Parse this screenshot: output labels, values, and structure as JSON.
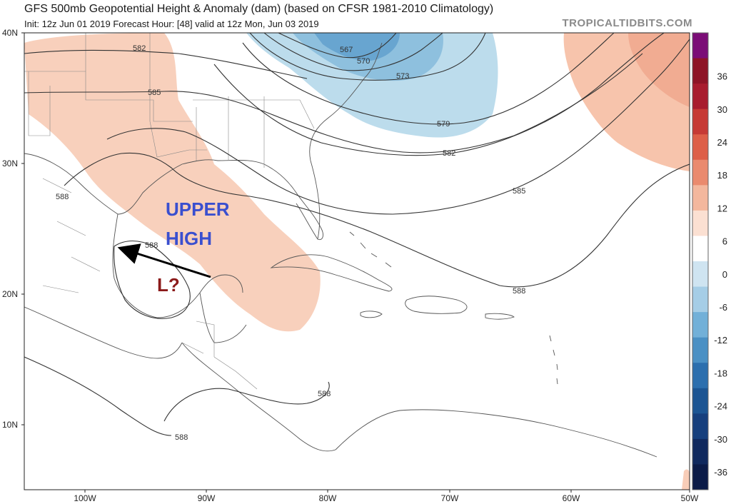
{
  "header": {
    "title": "GFS 500mb Geopotential Height & Anomaly (dam) (based on CFSR 1981-2010 Climatology)",
    "subtitle": "Init: 12z Jun 01 2019   Forecast Hour: [48]   valid at 12z Mon, Jun 03 2019",
    "brand": "TROPICALTIDBITS.COM"
  },
  "map": {
    "lat_labels": [
      "40N",
      "30N",
      "20N",
      "10N"
    ],
    "lon_labels": [
      "100W",
      "90W",
      "80W",
      "70W",
      "60W",
      "50W"
    ],
    "contour_labels": [
      "582",
      "585",
      "567",
      "570",
      "573",
      "579",
      "582",
      "585",
      "588",
      "588",
      "588",
      "588",
      "588"
    ],
    "annotations": {
      "upper_line1": "UPPER",
      "upper_line2": "HIGH",
      "low": "L?"
    }
  },
  "colorbar": {
    "labels": [
      "36",
      "30",
      "24",
      "18",
      "12",
      "6",
      "0",
      "-6",
      "-12",
      "-18",
      "-24",
      "-30",
      "-36"
    ],
    "colors": [
      "#7b0d77",
      "#8e1426",
      "#a81c2e",
      "#c63a35",
      "#dd5f48",
      "#ea8a6e",
      "#f3b79d",
      "#fbe0d2",
      "#ffffff",
      "#cfe4f1",
      "#a5cde6",
      "#72b0d8",
      "#4a90c4",
      "#2c6fae",
      "#1c5593",
      "#163f7d",
      "#10295e",
      "#0b1b48"
    ]
  }
}
